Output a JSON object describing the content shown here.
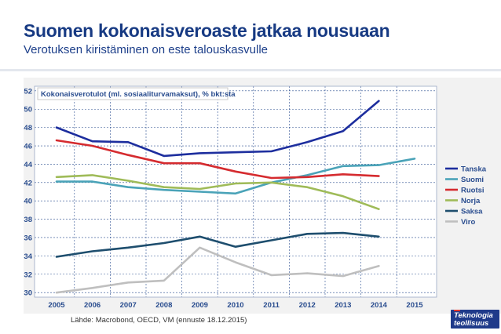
{
  "header": {
    "title": "Suomen kokonaisveroaste jatkaa nousuaan",
    "subtitle": "Verotuksen kiristäminen on este talouskasvulle"
  },
  "footer": {
    "source": "Lähde: Macrobond, OECD, VM (ennuste 18.12.2015)",
    "logo_line1": "Teknologia",
    "logo_line2": "teollisuus"
  },
  "colors": {
    "title": "#173a83",
    "panel": "#f2f2f2",
    "grid": "#2a4d8f"
  },
  "chart_data": {
    "type": "line",
    "title": "Kokonaisverotulot (ml. sosiaaliturvamaksut), % bkt:sta",
    "xlabel": "",
    "ylabel": "",
    "x": [
      "2005",
      "2006",
      "2007",
      "2008",
      "2009",
      "2010",
      "2011",
      "2012",
      "2013",
      "2014",
      "2015"
    ],
    "ylim": [
      29.5,
      52.5
    ],
    "yticks": [
      30,
      32,
      34,
      36,
      38,
      40,
      42,
      44,
      46,
      48,
      50,
      52
    ],
    "grid": true,
    "legend_position": "right",
    "series": [
      {
        "name": "Tanska",
        "color": "#1d2e9e",
        "values": [
          48.0,
          46.5,
          46.4,
          44.9,
          45.2,
          45.3,
          45.4,
          46.4,
          47.6,
          50.9,
          null
        ]
      },
      {
        "name": "Suomi",
        "color": "#4aa3b8",
        "values": [
          42.1,
          42.1,
          41.5,
          41.2,
          41.0,
          40.8,
          42.0,
          42.8,
          43.8,
          43.9,
          44.6
        ]
      },
      {
        "name": "Ruotsi",
        "color": "#d52b2f",
        "values": [
          46.6,
          46.0,
          45.0,
          44.1,
          44.1,
          43.2,
          42.5,
          42.6,
          42.9,
          42.7,
          null
        ]
      },
      {
        "name": "Norja",
        "color": "#9fbb58",
        "values": [
          42.6,
          42.8,
          42.2,
          41.5,
          41.3,
          41.9,
          42.0,
          41.5,
          40.5,
          39.1,
          null
        ]
      },
      {
        "name": "Saksa",
        "color": "#1e4e6e",
        "values": [
          33.9,
          34.5,
          34.9,
          35.4,
          36.1,
          35.0,
          35.7,
          36.4,
          36.5,
          36.1,
          null
        ]
      },
      {
        "name": "Viro",
        "color": "#bfbfbf",
        "values": [
          30.0,
          30.5,
          31.1,
          31.3,
          34.9,
          33.3,
          31.9,
          32.1,
          31.8,
          32.9,
          null
        ]
      }
    ]
  }
}
